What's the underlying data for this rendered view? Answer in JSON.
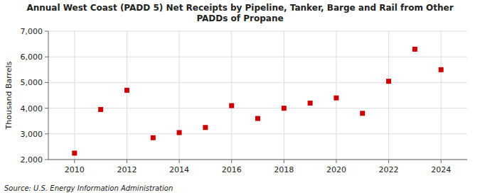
{
  "chart_data": {
    "type": "scatter",
    "title": "Annual West Coast (PADD 5) Net Receipts by Pipeline, Tanker, Barge and Rail from Other\nPADDs of Propane",
    "ylabel": "Thousand Barrels",
    "source": "Source: U.S. Energy Information Administration",
    "x": [
      2010,
      2011,
      2012,
      2013,
      2014,
      2015,
      2016,
      2017,
      2018,
      2019,
      2020,
      2021,
      2022,
      2023,
      2024
    ],
    "values": [
      2250,
      3950,
      4700,
      2850,
      3050,
      3250,
      4100,
      3600,
      4000,
      4200,
      4400,
      3800,
      5050,
      6300,
      5500
    ],
    "color": "#cc0000",
    "marker": "square",
    "grid": true,
    "xlim": [
      2009,
      2025
    ],
    "xticks": [
      2010,
      2012,
      2014,
      2016,
      2018,
      2020,
      2022,
      2024
    ],
    "ylim": [
      2000,
      7000
    ],
    "yticks": [
      {
        "value": 2000,
        "label": "2,000"
      },
      {
        "value": 3000,
        "label": "3,000"
      },
      {
        "value": 4000,
        "label": "4,000"
      },
      {
        "value": 5000,
        "label": "5,000"
      },
      {
        "value": 6000,
        "label": "6,000"
      },
      {
        "value": 7000,
        "label": "7,000"
      }
    ]
  }
}
